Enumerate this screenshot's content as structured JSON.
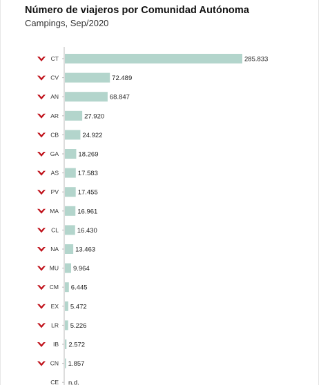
{
  "colors": {
    "bar": "#b3d5cc",
    "arrow": "#c0121b",
    "axis": "#bbbbbb",
    "text": "#222222"
  },
  "chart_data": {
    "type": "bar",
    "orientation": "horizontal",
    "title": "Número de viajeros por Comunidad Autónoma",
    "subtitle": "Campings, Sep/2020",
    "categories": [
      "CT",
      "CV",
      "AN",
      "AR",
      "CB",
      "GA",
      "AS",
      "PV",
      "MA",
      "CL",
      "NA",
      "MU",
      "CM",
      "EX",
      "LR",
      "IB",
      "CN",
      "CE"
    ],
    "values": [
      285833,
      72489,
      68847,
      27920,
      24922,
      18269,
      17583,
      17455,
      16961,
      16430,
      13463,
      9964,
      6445,
      5472,
      5226,
      2572,
      1857,
      null
    ],
    "value_labels": [
      "285.833",
      "72.489",
      "68.847",
      "27.920",
      "24.922",
      "18.269",
      "17.583",
      "17.455",
      "16.961",
      "16.430",
      "13.463",
      "9.964",
      "6.445",
      "5.472",
      "5.226",
      "2.572",
      "1.857",
      "n.d."
    ],
    "trend_icons": [
      "arrow-down-icon",
      "arrow-down-icon",
      "arrow-down-icon",
      "arrow-down-icon",
      "arrow-down-icon",
      "arrow-down-icon",
      "arrow-down-icon",
      "arrow-down-icon",
      "arrow-down-icon",
      "arrow-down-icon",
      "arrow-down-icon",
      "arrow-down-icon",
      "arrow-down-icon",
      "arrow-down-icon",
      "arrow-down-icon",
      "arrow-down-icon",
      "arrow-down-icon",
      ""
    ],
    "xlim": [
      0,
      285833
    ],
    "grid": false,
    "legend": "none"
  }
}
